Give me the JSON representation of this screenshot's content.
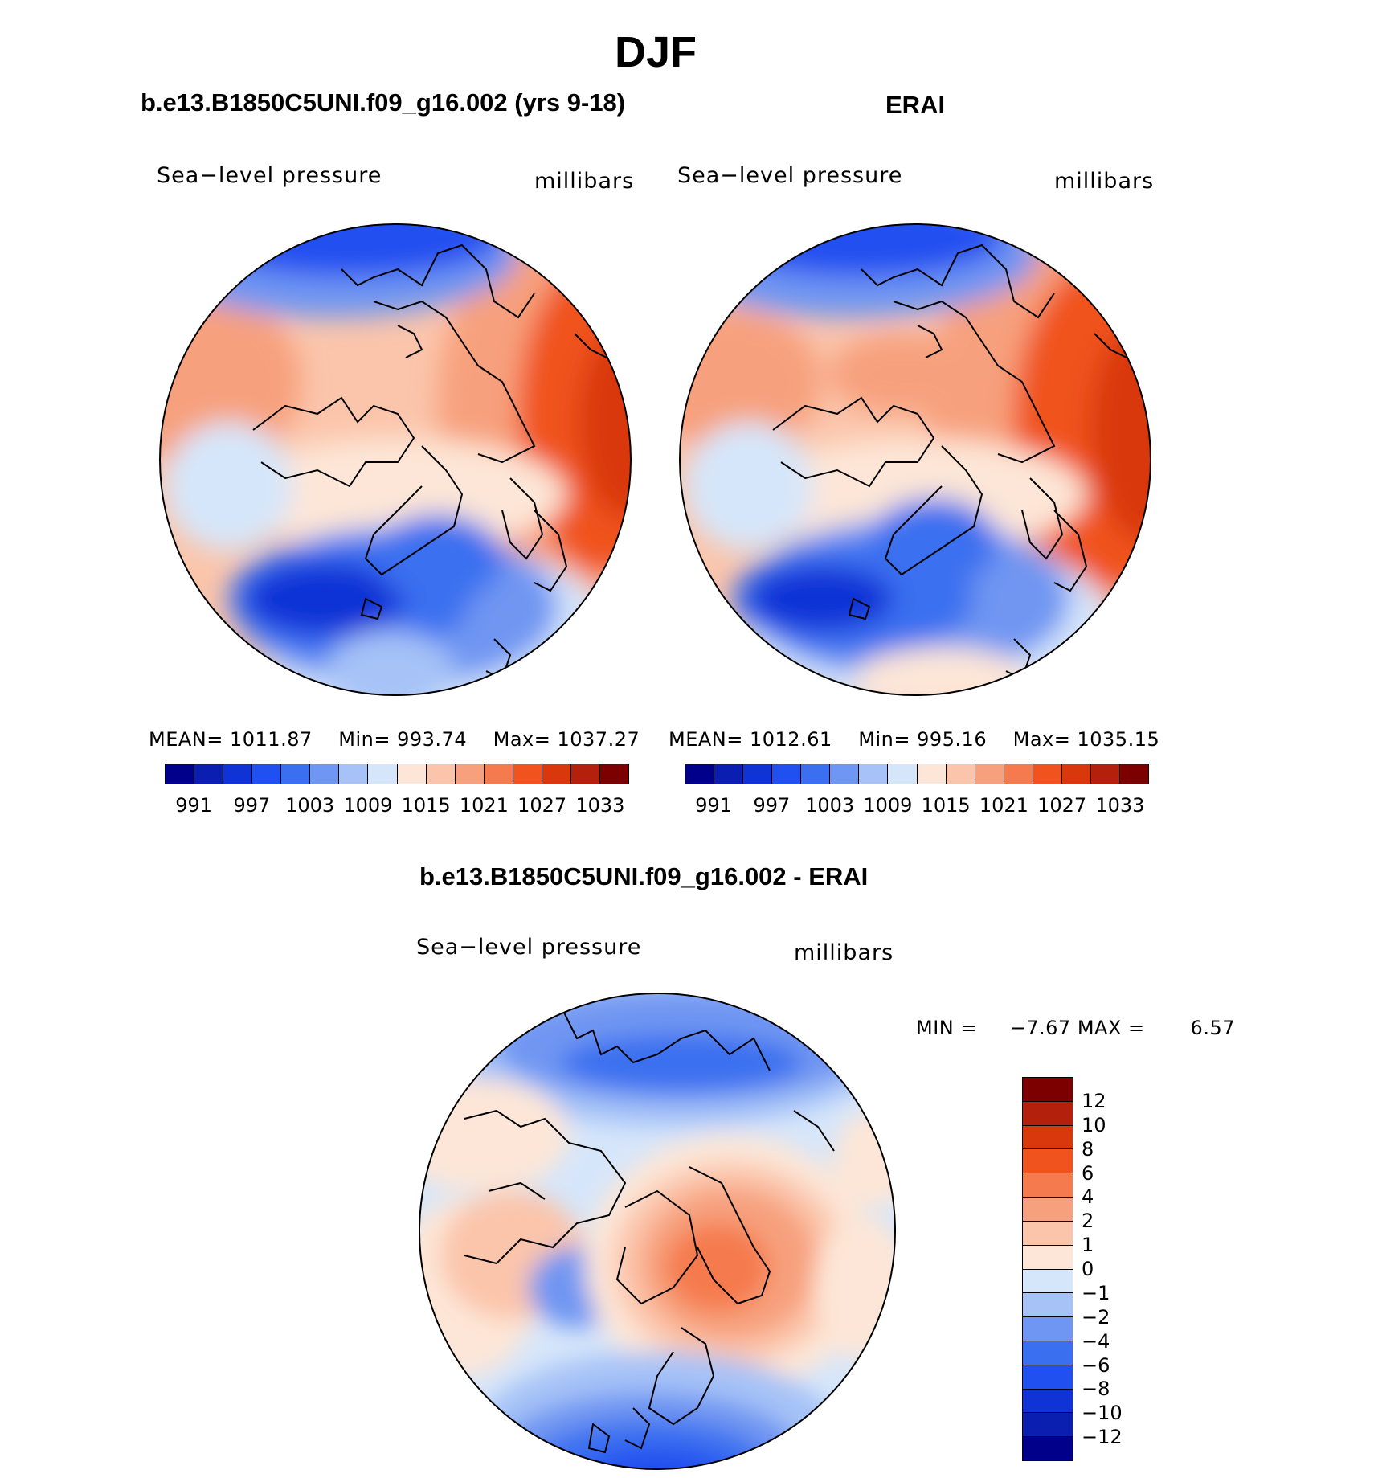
{
  "title": "DJF",
  "panels": [
    {
      "title": "b.e13.B1850C5UNI.f09_g16.002 (yrs 9-18)",
      "variable": "Sea−level pressure",
      "units": "millibars",
      "mean_label": "MEAN=",
      "mean": "1011.87",
      "min_label": "Min=",
      "min": "993.74",
      "max_label": "Max=",
      "max": "1037.27"
    },
    {
      "title": "ERAI",
      "variable": "Sea−level pressure",
      "units": "millibars",
      "mean_label": "MEAN=",
      "mean": "1012.61",
      "min_label": "Min=",
      "min": "995.16",
      "max_label": "Max=",
      "max": "1035.15"
    }
  ],
  "diff_panel": {
    "title": "b.e13.B1850C5UNI.f09_g16.002 - ERAI",
    "variable": "Sea−level pressure",
    "units": "millibars",
    "min_label": "MIN =",
    "min": "−7.67",
    "max_label": "MAX =",
    "max": "6.57"
  },
  "colorbar_abs": {
    "tick_labels": [
      "991",
      "997",
      "1003",
      "1009",
      "1015",
      "1021",
      "1027",
      "1033"
    ],
    "colors": [
      "#00008b",
      "#0a1fb0",
      "#1033d6",
      "#2050f0",
      "#3a6ff0",
      "#6f96f2",
      "#a6c2f7",
      "#d6e6fa",
      "#fde6d7",
      "#fbc5ab",
      "#f7a07d",
      "#f57a4d",
      "#f0531e",
      "#d9380c",
      "#b3200b",
      "#7d0000"
    ]
  },
  "colorbar_diff": {
    "tick_labels": [
      "12",
      "10",
      "8",
      "6",
      "4",
      "2",
      "1",
      "0",
      "−1",
      "−2",
      "−4",
      "−6",
      "−8",
      "−10",
      "−12"
    ],
    "colors": [
      "#7d0000",
      "#b3200b",
      "#d9380c",
      "#f0531e",
      "#f57a4d",
      "#f7a07d",
      "#fbc5ab",
      "#fde6d7",
      "#d6e6fa",
      "#a6c2f7",
      "#6f96f2",
      "#3a6ff0",
      "#2050f0",
      "#1033d6",
      "#0a1fb0",
      "#00008b"
    ]
  }
}
